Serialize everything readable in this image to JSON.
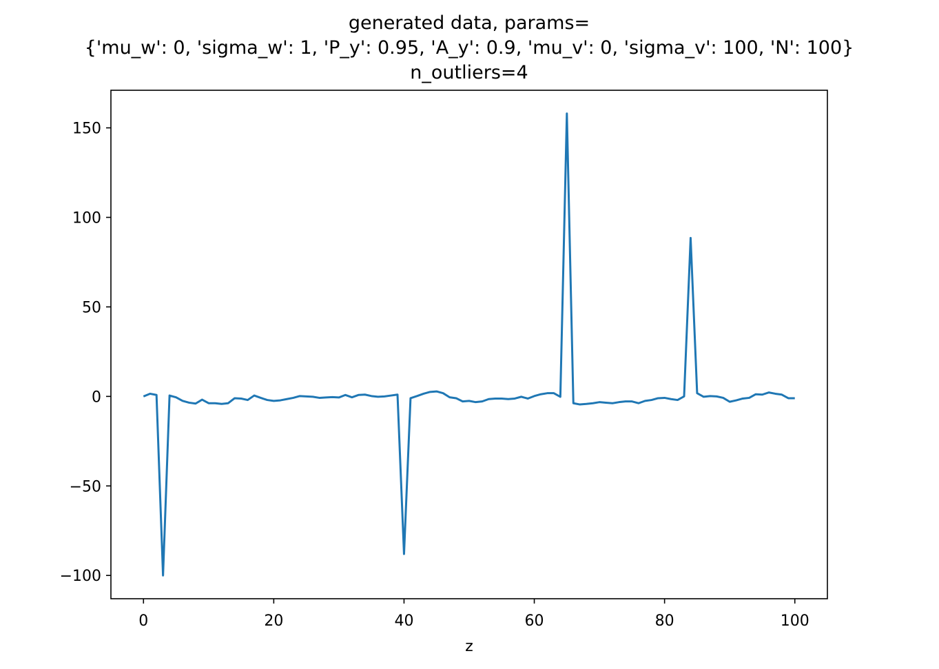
{
  "chart_data": {
    "type": "line",
    "title_lines": [
      "generated data, params=",
      "{'mu_w': 0, 'sigma_w': 1, 'P_y': 0.95, 'A_y': 0.9, 'mu_v': 0, 'sigma_v': 100, 'N': 100}",
      "n_outliers=4"
    ],
    "xlabel": "z",
    "ylabel": "",
    "xlim": [
      -5,
      105
    ],
    "ylim": [
      -113,
      171
    ],
    "xticks": [
      0,
      20,
      40,
      60,
      80,
      100
    ],
    "xtick_labels": [
      "0",
      "20",
      "40",
      "60",
      "80",
      "100"
    ],
    "yticks": [
      150,
      100,
      50,
      0,
      -50,
      -100
    ],
    "ytick_labels": [
      "150",
      "100",
      "50",
      "0",
      "−50",
      "−100"
    ],
    "grid": false,
    "color": "#1f77b4",
    "series": [
      {
        "x": [
          0,
          1,
          2,
          3,
          4,
          5,
          6,
          7,
          8,
          9,
          10,
          11,
          12,
          13,
          14,
          15,
          16,
          17,
          18,
          19,
          20,
          21,
          22,
          23,
          24,
          25,
          26,
          27,
          28,
          29,
          30,
          31,
          32,
          33,
          34,
          35,
          36,
          37,
          38,
          39,
          40,
          41,
          42,
          43,
          44,
          45,
          46,
          47,
          48,
          49,
          50,
          51,
          52,
          53,
          54,
          55,
          56,
          57,
          58,
          59,
          60,
          61,
          62,
          63,
          64,
          65,
          66,
          67,
          68,
          69,
          70,
          71,
          72,
          73,
          74,
          75,
          76,
          77,
          78,
          79,
          80,
          81,
          82,
          83,
          84,
          85,
          86,
          87,
          88,
          89,
          90,
          91,
          92,
          93,
          94,
          95,
          96,
          97,
          98,
          99,
          100
        ],
        "values": [
          0.0,
          1.5,
          0.8,
          -100.0,
          0.5,
          -0.5,
          -2.5,
          -3.5,
          -4.0,
          -1.8,
          -3.8,
          -3.8,
          -4.2,
          -3.8,
          -1.0,
          -1.2,
          -2.0,
          0.5,
          -0.8,
          -2.0,
          -2.5,
          -2.2,
          -1.5,
          -0.8,
          0.2,
          0.0,
          -0.2,
          -0.8,
          -0.6,
          -0.4,
          -0.6,
          0.8,
          -0.5,
          0.8,
          1.0,
          0.2,
          -0.2,
          0.0,
          0.5,
          1.0,
          -88.0,
          -1.0,
          0.2,
          1.5,
          2.5,
          2.8,
          1.8,
          -0.5,
          -1.0,
          -2.8,
          -2.5,
          -3.2,
          -2.8,
          -1.5,
          -1.2,
          -1.2,
          -1.5,
          -1.2,
          -0.2,
          -1.2,
          0.2,
          1.2,
          1.8,
          1.8,
          -0.2,
          158.0,
          -3.8,
          -4.5,
          -4.2,
          -3.8,
          -3.2,
          -3.5,
          -3.8,
          -3.2,
          -2.8,
          -2.8,
          -3.8,
          -2.5,
          -2.0,
          -1.0,
          -0.8,
          -1.5,
          -2.0,
          0.0,
          88.5,
          1.8,
          -0.2,
          0.2,
          0.0,
          -0.8,
          -3.0,
          -2.2,
          -1.2,
          -0.8,
          1.2,
          1.0,
          2.2,
          1.5,
          1.0,
          -1.0,
          -1.0
        ]
      }
    ]
  }
}
